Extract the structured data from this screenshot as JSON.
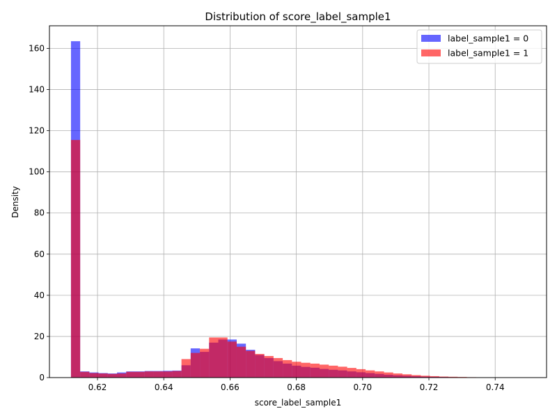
{
  "chart_data": {
    "type": "histogram",
    "title": "Distribution of score_label_sample1",
    "xlabel": "score_label_sample1",
    "ylabel": "Density",
    "xlim": [
      0.6055,
      0.7555
    ],
    "ylim": [
      0,
      171
    ],
    "xticks": [
      0.62,
      0.64,
      0.66,
      0.68,
      0.7,
      0.72,
      0.74
    ],
    "yticks": [
      0,
      20,
      40,
      60,
      80,
      100,
      120,
      140,
      160
    ],
    "grid": true,
    "legend_position": "top-right",
    "bin_start": 0.612,
    "bin_width": 0.002778,
    "series": [
      {
        "name": "label_sample1 = 0",
        "color": "#0000ff",
        "opacity": 0.6,
        "values": [
          163.5,
          3.0,
          2.5,
          2.2,
          2.0,
          2.5,
          3.0,
          3.0,
          3.2,
          3.2,
          3.3,
          3.4,
          6.0,
          14.2,
          12.5,
          17.0,
          18.5,
          18.5,
          16.5,
          13.5,
          11.0,
          9.5,
          8.0,
          6.8,
          5.8,
          5.2,
          4.8,
          4.2,
          3.8,
          3.5,
          3.0,
          2.6,
          2.2,
          1.8,
          1.4,
          1.1,
          0.9,
          0.7,
          0.5,
          0.4,
          0.3,
          0.2,
          0.15,
          0.1,
          0.05,
          0.0,
          0.0,
          0.0,
          0.0,
          0.0
        ]
      },
      {
        "name": "label_sample1 = 1",
        "color": "#ff0000",
        "opacity": 0.6,
        "values": [
          115.5,
          2.8,
          2.2,
          2.0,
          1.8,
          2.0,
          2.8,
          2.8,
          3.0,
          3.0,
          3.0,
          3.2,
          9.0,
          12.0,
          14.0,
          19.5,
          19.5,
          17.5,
          15.0,
          13.0,
          11.5,
          10.5,
          9.5,
          8.5,
          7.7,
          7.2,
          6.8,
          6.3,
          5.8,
          5.3,
          4.7,
          4.1,
          3.5,
          3.0,
          2.5,
          2.0,
          1.6,
          1.2,
          0.9,
          0.7,
          0.5,
          0.4,
          0.3,
          0.2,
          0.1,
          0.05,
          0.0,
          0.0,
          0.0,
          0.0
        ]
      }
    ]
  }
}
